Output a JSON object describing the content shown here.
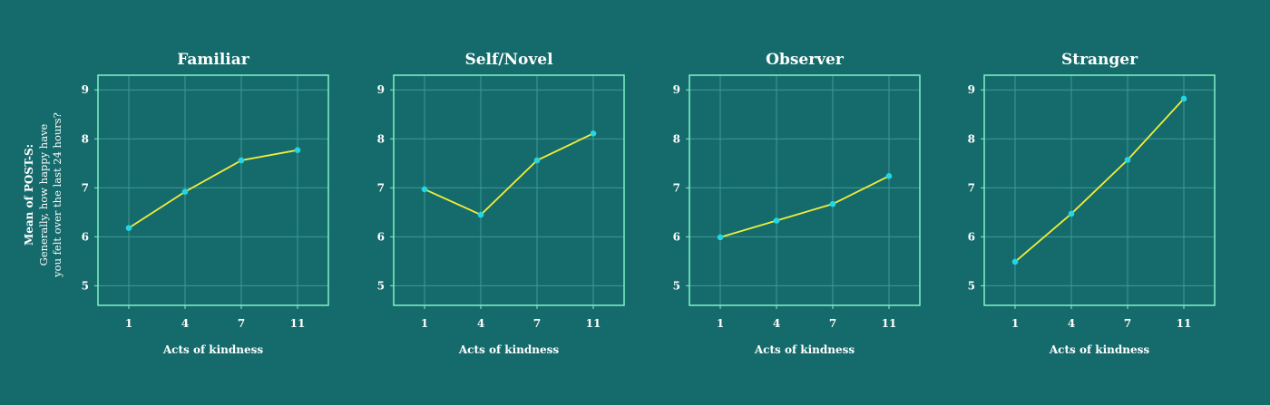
{
  "theme": {
    "background": "#156b6c",
    "frame": "#7ff3c8",
    "grid": "#3f9a93",
    "line": "#f2ee3a",
    "marker": "#22d6e2",
    "text": "#ffffff"
  },
  "ylabel": {
    "main": "Mean of POST-S:",
    "sub1": "Generally, how happy have",
    "sub2": "you felt over the last 24 hours?"
  },
  "chart_data": [
    {
      "type": "line",
      "title": "Familiar",
      "xlabel": "Acts of kindness",
      "categories": [
        "1",
        "4",
        "7",
        "11"
      ],
      "values": [
        6.18,
        6.92,
        7.56,
        7.77
      ],
      "ylim": [
        4.6,
        9.3
      ],
      "yticks": [
        5,
        6,
        7,
        8,
        9
      ],
      "grid": true
    },
    {
      "type": "line",
      "title": "Self/Novel",
      "xlabel": "Acts of kindness",
      "categories": [
        "1",
        "4",
        "7",
        "11"
      ],
      "values": [
        6.97,
        6.45,
        7.56,
        8.11
      ],
      "ylim": [
        4.6,
        9.3
      ],
      "yticks": [
        5,
        6,
        7,
        8,
        9
      ],
      "grid": true
    },
    {
      "type": "line",
      "title": "Observer",
      "xlabel": "Acts of kindness",
      "categories": [
        "1",
        "4",
        "7",
        "11"
      ],
      "values": [
        5.99,
        6.33,
        6.67,
        7.24
      ],
      "ylim": [
        4.6,
        9.3
      ],
      "yticks": [
        5,
        6,
        7,
        8,
        9
      ],
      "grid": true
    },
    {
      "type": "line",
      "title": "Stranger",
      "xlabel": "Acts of kindness",
      "categories": [
        "1",
        "4",
        "7",
        "11"
      ],
      "values": [
        5.49,
        6.47,
        7.57,
        8.82
      ],
      "ylim": [
        4.6,
        9.3
      ],
      "yticks": [
        5,
        6,
        7,
        8,
        9
      ],
      "grid": true
    }
  ]
}
